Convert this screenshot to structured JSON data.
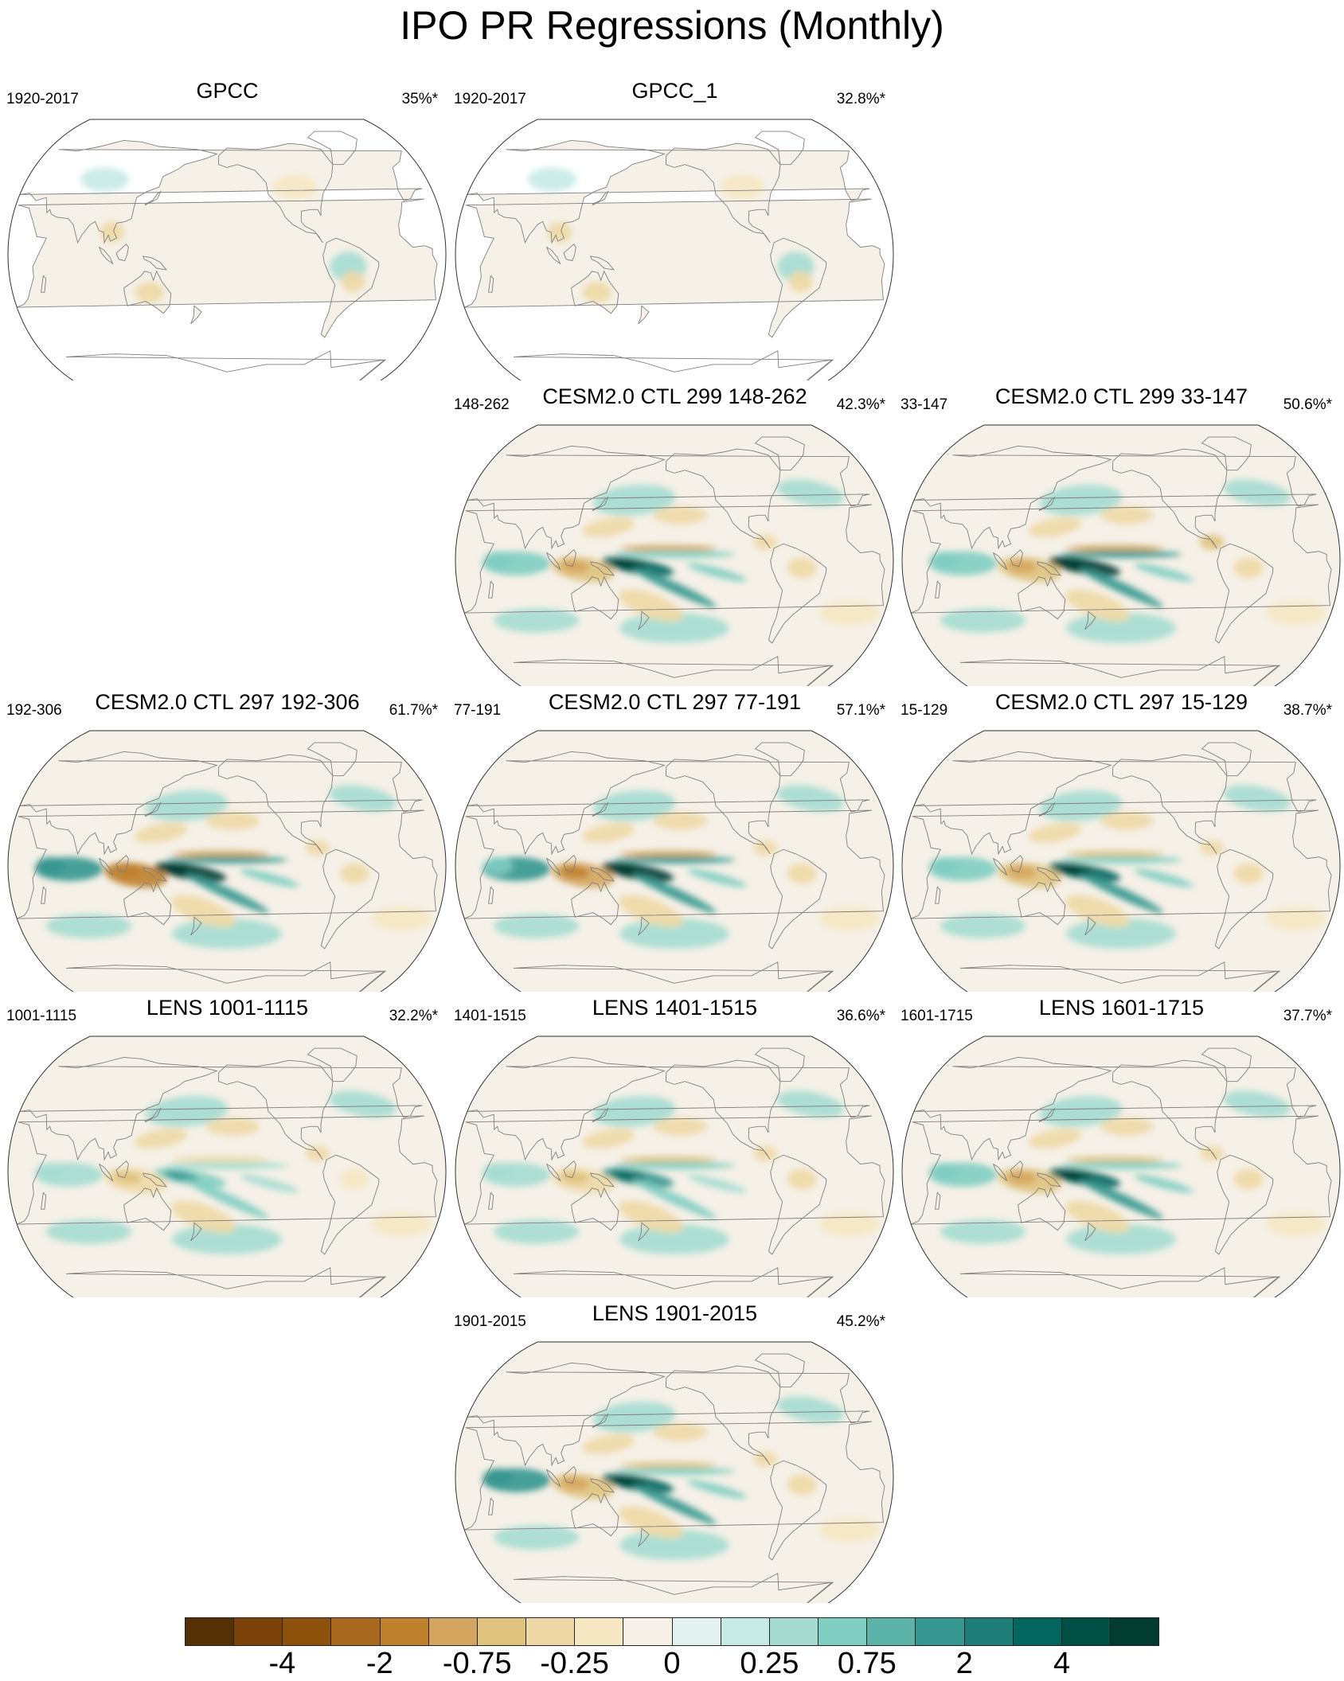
{
  "figure": {
    "title": "IPO PR Regressions (Monthly)"
  },
  "panels": [
    {
      "id": "gpcc",
      "title": "GPCC",
      "period": "1920-2017",
      "pct": "35%*",
      "pattern": {
        "indo": 0.08,
        "band": 0.06,
        "wedge": 0.05,
        "wpac": 0.05,
        "ocean": false
      }
    },
    {
      "id": "gpcc1",
      "title": "GPCC_1",
      "period": "1920-2017",
      "pct": "32.8%*",
      "pattern": {
        "indo": 0.08,
        "band": 0.06,
        "wedge": 0.05,
        "wpac": 0.05,
        "ocean": false
      }
    },
    {
      "id": "cesm299a",
      "title": "CESM2.0 CTL 299 148-262",
      "period": "148-262",
      "pct": "42.3%*",
      "pattern": {
        "indo": 0.4,
        "band": 0.7,
        "wedge": 0.8,
        "wpac": 0.5,
        "ocean": true
      }
    },
    {
      "id": "cesm299b",
      "title": "CESM2.0 CTL 299 33-147",
      "period": "33-147",
      "pct": "50.6%*",
      "pattern": {
        "indo": 0.45,
        "band": 0.85,
        "wedge": 0.95,
        "wpac": 0.5,
        "ocean": true
      }
    },
    {
      "id": "cesm297a",
      "title": "CESM2.0 CTL 297 192-306",
      "period": "192-306",
      "pct": "61.7%*",
      "pattern": {
        "indo": 0.9,
        "band": 0.75,
        "wedge": 0.95,
        "wpac": 0.6,
        "ocean": true
      }
    },
    {
      "id": "cesm297b",
      "title": "CESM2.0 CTL 297 77-191",
      "period": "77-191",
      "pct": "57.1%*",
      "pattern": {
        "indo": 0.8,
        "band": 0.8,
        "wedge": 0.9,
        "wpac": 0.55,
        "ocean": true
      }
    },
    {
      "id": "cesm297c",
      "title": "CESM2.0 CTL 297 15-129",
      "period": "15-129",
      "pct": "38.7%*",
      "pattern": {
        "indo": 0.6,
        "band": 0.55,
        "wedge": 0.8,
        "wpac": 0.5,
        "ocean": true
      }
    },
    {
      "id": "lens1001",
      "title": "LENS 1001-1115",
      "period": "1001-1115",
      "pct": "32.2%*",
      "pattern": {
        "indo": 0.3,
        "band": 0.35,
        "wedge": 0.5,
        "wpac": 0.3,
        "ocean": true
      }
    },
    {
      "id": "lens1401",
      "title": "LENS 1401-1515",
      "period": "1401-1515",
      "pct": "36.6%*",
      "pattern": {
        "indo": 0.3,
        "band": 0.45,
        "wedge": 0.55,
        "wpac": 0.3,
        "ocean": true
      }
    },
    {
      "id": "lens1601",
      "title": "LENS 1601-1715",
      "period": "1601-1715",
      "pct": "37.7%*",
      "pattern": {
        "indo": 0.55,
        "band": 0.5,
        "wedge": 0.8,
        "wpac": 0.45,
        "ocean": true
      }
    },
    {
      "id": "lens1901",
      "title": "LENS 1901-2015",
      "period": "1901-2015",
      "pct": "45.2%*",
      "pattern": {
        "indo": 0.5,
        "band": 0.45,
        "wedge": 0.8,
        "wpac": 0.7,
        "ocean": true
      }
    }
  ],
  "colorbar": {
    "colors": [
      "#543005",
      "#7a4209",
      "#8c510a",
      "#a8691e",
      "#bf812d",
      "#d4a55e",
      "#dfc27d",
      "#eed9a6",
      "#f6e8c3",
      "#f5f1e8",
      "#e4f2ef",
      "#c7eae5",
      "#a5dbd1",
      "#80cdc1",
      "#5bb2a7",
      "#35978f",
      "#1f7f78",
      "#01665e",
      "#004f45",
      "#003c30"
    ],
    "ticks": [
      {
        "label": "-4",
        "boundary": 2
      },
      {
        "label": "-2",
        "boundary": 4
      },
      {
        "label": "-0.75",
        "boundary": 6
      },
      {
        "label": "-0.25",
        "boundary": 8
      },
      {
        "label": "0",
        "boundary": 10
      },
      {
        "label": "0.25",
        "boundary": 12
      },
      {
        "label": "0.75",
        "boundary": 14
      },
      {
        "label": "2",
        "boundary": 16
      },
      {
        "label": "4",
        "boundary": 18
      }
    ]
  }
}
